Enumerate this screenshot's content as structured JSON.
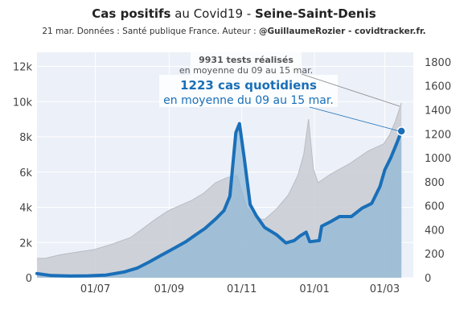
{
  "chart_data": {
    "type": "line",
    "title": {
      "part1": "Cas positifs",
      "part2": " au Covid19 - ",
      "part3": "Seine-Saint-Denis"
    },
    "subtitle": {
      "prefix": "21 mar. Données : Santé publique France. Auteur : ",
      "author": "@GuillaumeRozier - covidtracker.fr."
    },
    "x_ticks": [
      "01/07",
      "01/09",
      "01/11",
      "01/01",
      "01/03"
    ],
    "y_left_ticks": [
      "0",
      "2k",
      "4k",
      "6k",
      "8k",
      "10k",
      "12k"
    ],
    "y_right_ticks": [
      "0",
      "200",
      "400",
      "600",
      "800",
      "1000",
      "1200",
      "1400",
      "1600",
      "1800"
    ],
    "y_left_range": [
      0,
      12800
    ],
    "y_right_range": [
      0,
      1880
    ],
    "grid": true,
    "annotations": {
      "tests_label": "9931 tests réalisés",
      "tests_sub": "en moyenne du 09 au 15 mar.",
      "cases_label": "1223 cas quotidiens",
      "cases_sub": "en moyenne du 09 au 15 mar."
    },
    "series": [
      {
        "role": "tests",
        "axis": "left",
        "color": "#c9ccd2",
        "x": [
          "2020-05-13",
          "2020-05-20",
          "2020-06-01",
          "2020-06-15",
          "2020-06-30",
          "2020-07-15",
          "2020-07-31",
          "2020-08-10",
          "2020-08-20",
          "2020-08-31",
          "2020-09-10",
          "2020-09-20",
          "2020-09-30",
          "2020-10-10",
          "2020-10-20",
          "2020-10-28",
          "2020-11-05",
          "2020-11-12",
          "2020-11-20",
          "2020-11-30",
          "2020-12-10",
          "2020-12-18",
          "2020-12-23",
          "2020-12-27",
          "2020-12-31",
          "2021-01-04",
          "2021-01-15",
          "2021-01-31",
          "2021-02-15",
          "2021-02-28",
          "2021-03-05",
          "2021-03-10",
          "2021-03-15"
        ],
        "values": [
          1100,
          1100,
          1300,
          1450,
          1600,
          1900,
          2300,
          2800,
          3300,
          3800,
          4100,
          4400,
          4800,
          5400,
          5700,
          5800,
          4000,
          3400,
          3300,
          3900,
          4700,
          5800,
          7000,
          9000,
          6200,
          5400,
          5900,
          6500,
          7200,
          7600,
          8100,
          8900,
          9931
        ]
      },
      {
        "role": "cases",
        "axis": "right",
        "color": "#1a6fb8",
        "fill": "#8db6d6",
        "x": [
          "2020-05-13",
          "2020-05-25",
          "2020-06-10",
          "2020-06-25",
          "2020-07-10",
          "2020-07-25",
          "2020-08-05",
          "2020-08-15",
          "2020-08-25",
          "2020-09-05",
          "2020-09-15",
          "2020-09-25",
          "2020-10-01",
          "2020-10-10",
          "2020-10-17",
          "2020-10-22",
          "2020-10-27",
          "2020-10-30",
          "2020-11-03",
          "2020-11-08",
          "2020-11-13",
          "2020-11-20",
          "2020-11-30",
          "2020-12-08",
          "2020-12-15",
          "2020-12-20",
          "2020-12-25",
          "2020-12-28",
          "2021-01-05",
          "2021-01-07",
          "2021-01-15",
          "2021-01-22",
          "2021-02-01",
          "2021-02-10",
          "2021-02-18",
          "2021-02-25",
          "2021-03-01",
          "2021-03-06",
          "2021-03-11",
          "2021-03-15"
        ],
        "values": [
          35,
          18,
          14,
          16,
          22,
          48,
          80,
          130,
          185,
          245,
          300,
          370,
          410,
          490,
          560,
          680,
          1210,
          1285,
          1000,
          610,
          520,
          420,
          360,
          290,
          310,
          350,
          380,
          300,
          310,
          430,
          470,
          510,
          510,
          580,
          620,
          760,
          900,
          1000,
          1120,
          1223
        ]
      }
    ]
  }
}
